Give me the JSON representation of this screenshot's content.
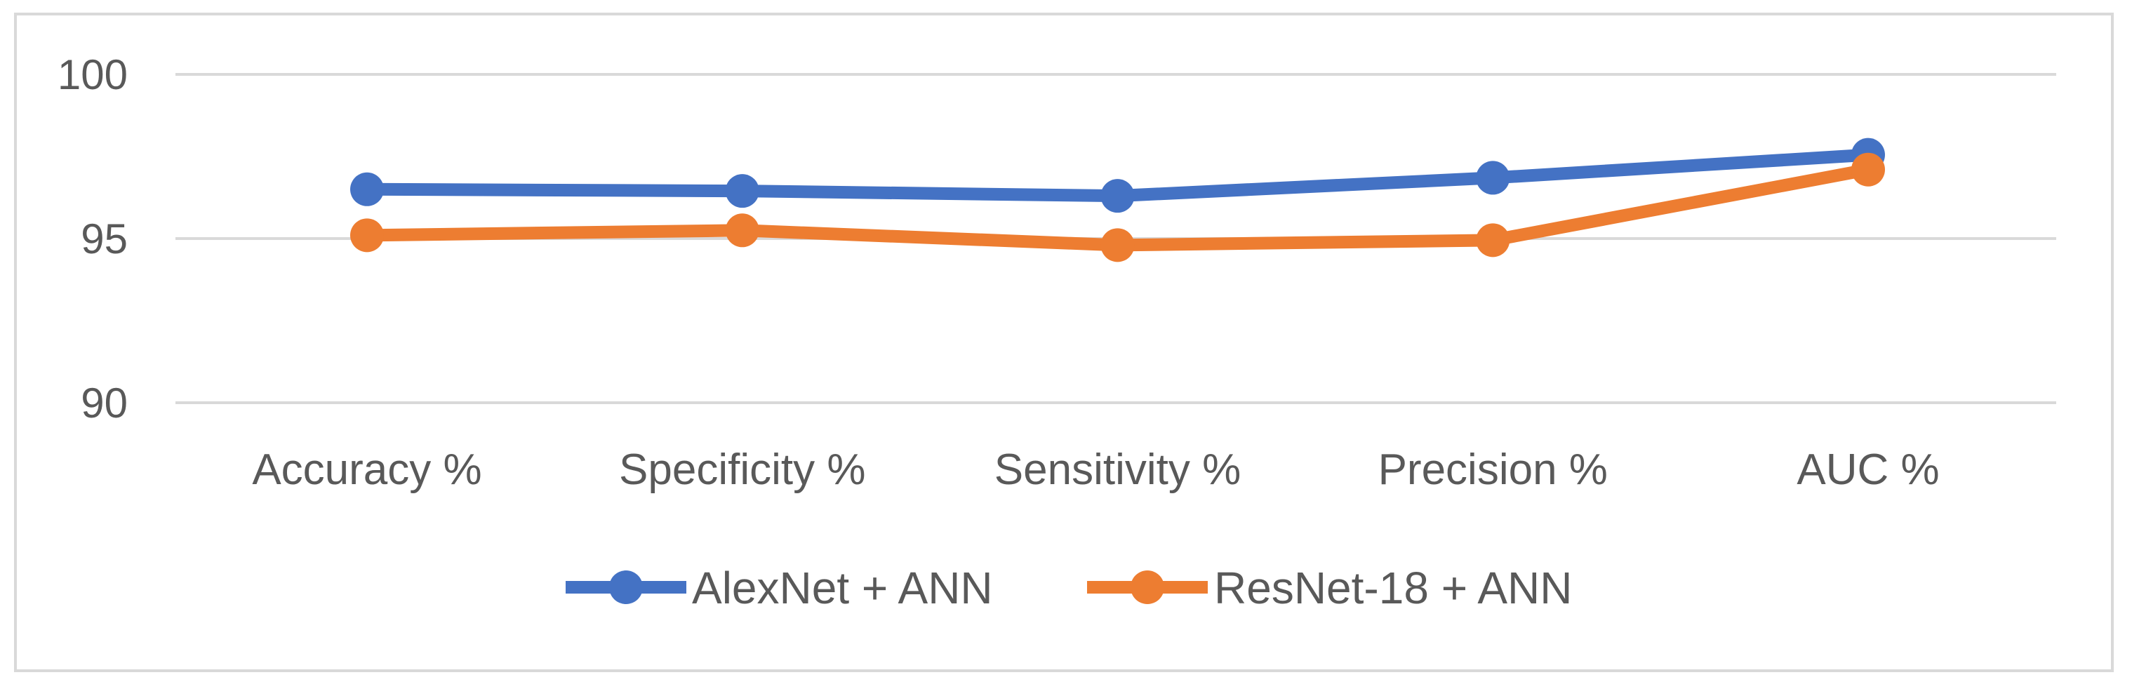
{
  "chart_data": {
    "type": "line",
    "title": "",
    "xlabel": "",
    "ylabel": "",
    "categories": [
      "Accuracy %",
      "Specificity %",
      "Sensitivity %",
      "Precision %",
      "AUC %"
    ],
    "ylim": [
      90,
      100
    ],
    "yticks": [
      90,
      95,
      100
    ],
    "grid": true,
    "legend_position": "bottom",
    "series": [
      {
        "name": "AlexNet + ANN",
        "color": "#4472C4",
        "values": [
          96.5,
          96.45,
          96.3,
          96.85,
          97.55
        ]
      },
      {
        "name": "ResNet-18 + ANN",
        "color": "#ED7D31",
        "values": [
          95.1,
          95.25,
          94.8,
          94.95,
          97.1
        ]
      }
    ]
  }
}
